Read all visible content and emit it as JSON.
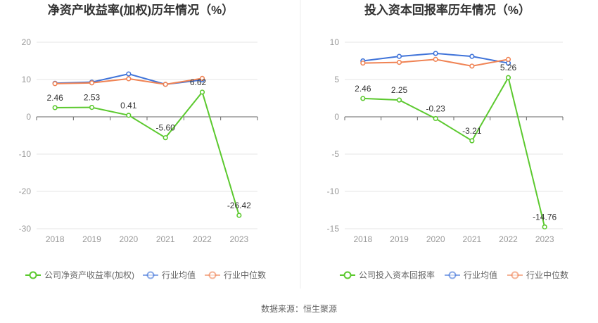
{
  "source_text": "数据来源：恒生聚源",
  "chart_data": [
    {
      "type": "line",
      "title": "净资产收益率(加权)历年情况（%）",
      "categories": [
        "2018",
        "2019",
        "2020",
        "2021",
        "2022",
        "2023"
      ],
      "ylim": [
        -30,
        20
      ],
      "yticks": [
        "20",
        "10",
        "0",
        "-10",
        "-20",
        "-30"
      ],
      "grid": true,
      "legend_position": "bottom",
      "series": [
        {
          "name": "公司净资产收益率(加权)",
          "color": "#5cc92f",
          "values": [
            2.46,
            2.53,
            0.41,
            -5.6,
            6.62,
            -26.42
          ],
          "labels": [
            "2.46",
            "2.53",
            "0.41",
            "-5.60",
            "6.62",
            "-26.42"
          ]
        },
        {
          "name": "行业均值",
          "color": "#3f73d9",
          "values": [
            9.0,
            9.3,
            11.5,
            8.7,
            9.9,
            null
          ]
        },
        {
          "name": "行业中位数",
          "color": "#f08354",
          "values": [
            8.9,
            9.1,
            10.2,
            8.7,
            10.3,
            null
          ]
        }
      ]
    },
    {
      "type": "line",
      "title": "投入资本回报率历年情况（%）",
      "categories": [
        "2018",
        "2019",
        "2020",
        "2021",
        "2022",
        "2023"
      ],
      "ylim": [
        -15,
        10
      ],
      "yticks": [
        "10",
        "5",
        "0",
        "-5",
        "-10",
        "-15"
      ],
      "grid": true,
      "legend_position": "bottom",
      "series": [
        {
          "name": "公司投入资本回报率",
          "color": "#5cc92f",
          "values": [
            2.46,
            2.25,
            -0.23,
            -3.21,
            5.26,
            -14.76
          ],
          "labels": [
            "2.46",
            "2.25",
            "-0.23",
            "-3.21",
            "5.26",
            "-14.76"
          ]
        },
        {
          "name": "行业均值",
          "color": "#3f73d9",
          "values": [
            7.5,
            8.1,
            8.5,
            8.1,
            7.2,
            null
          ]
        },
        {
          "name": "行业中位数",
          "color": "#f08354",
          "values": [
            7.2,
            7.3,
            7.7,
            6.8,
            7.7,
            null
          ]
        }
      ]
    }
  ]
}
